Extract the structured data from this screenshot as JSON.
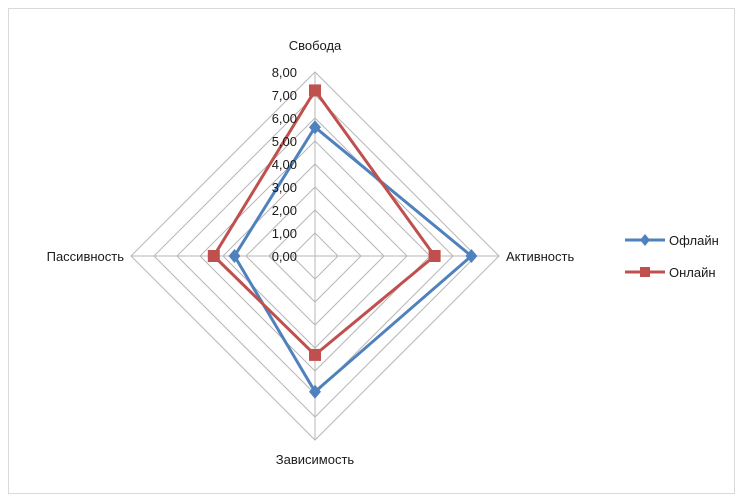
{
  "chart_data": {
    "type": "radar",
    "axes": [
      "Свобода",
      "Активность",
      "Зависимость",
      "Пассивность"
    ],
    "rlim": [
      0,
      8
    ],
    "ticks": [
      "0,00",
      "1,00",
      "2,00",
      "3,00",
      "4,00",
      "5,00",
      "6,00",
      "7,00",
      "8,00"
    ],
    "grid": true,
    "legend_position": "right",
    "series": [
      {
        "name": "Офлайн",
        "values": [
          5.6,
          6.8,
          5.9,
          3.5
        ],
        "color": "#4f81bd",
        "marker": "diamond"
      },
      {
        "name": "Онлайн",
        "values": [
          7.2,
          5.2,
          4.3,
          4.4
        ],
        "color": "#c0504d",
        "marker": "square"
      }
    ]
  }
}
